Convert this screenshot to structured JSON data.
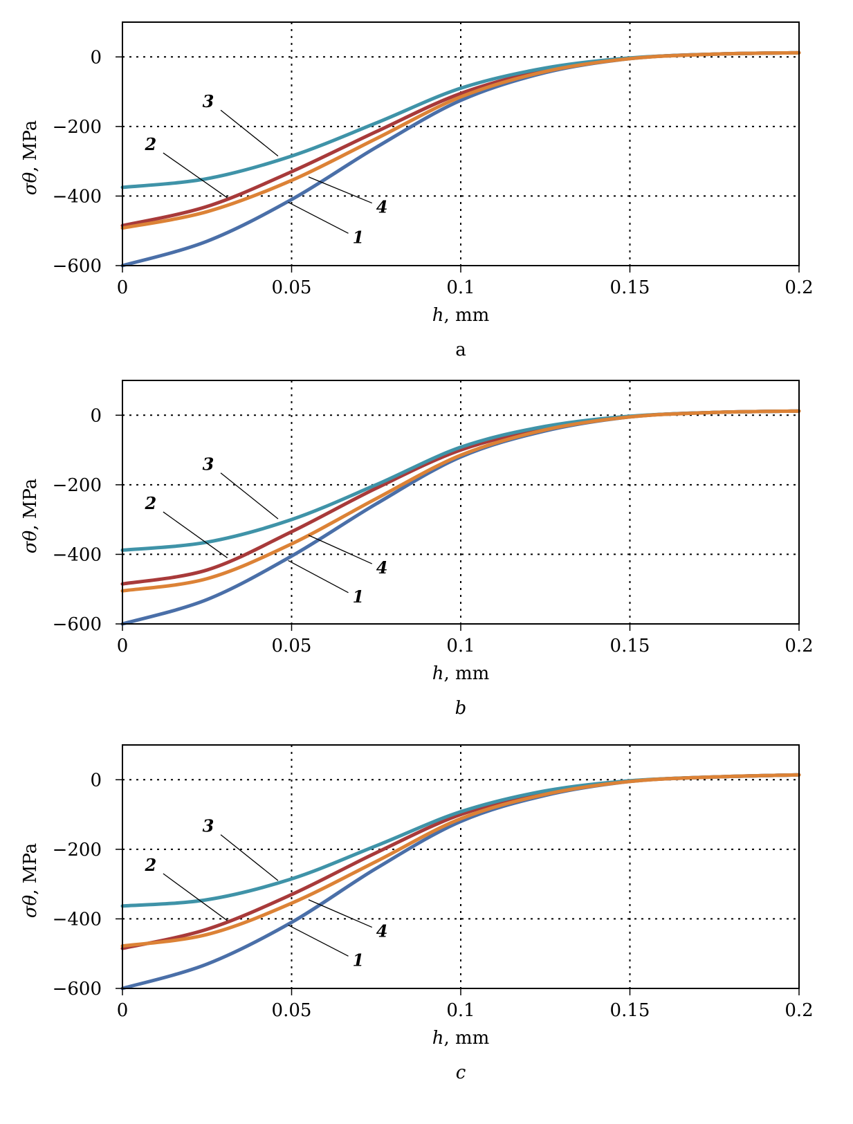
{
  "chart_data": [
    {
      "type": "line",
      "caption": "a",
      "xlabel_var": "h",
      "xlabel_unit": ", mm",
      "ylabel_var": "σθ",
      "ylabel_unit": ", MPa",
      "xlim": [
        0,
        0.2
      ],
      "ylim": [
        -600,
        100
      ],
      "xticks": [
        0,
        0.05,
        0.1,
        0.15,
        0.2
      ],
      "xtick_labels": [
        "0",
        "0.05",
        "0.1",
        "0.15",
        "0.2"
      ],
      "yticks": [
        0,
        -200,
        -400,
        -600
      ],
      "ytick_labels": [
        "0",
        "−200",
        "−400",
        "−600"
      ],
      "grid": true,
      "x": [
        0,
        0.025,
        0.05,
        0.075,
        0.1,
        0.125,
        0.15,
        0.175,
        0.2
      ],
      "series": [
        {
          "name": "1",
          "color": "#4a6fa8",
          "values": [
            -600,
            -530,
            -410,
            -260,
            -125,
            -45,
            -5,
            8,
            12
          ]
        },
        {
          "name": "2",
          "color": "#a83a3a",
          "values": [
            -485,
            -430,
            -330,
            -215,
            -105,
            -38,
            -4,
            8,
            12
          ]
        },
        {
          "name": "3",
          "color": "#3f93a8",
          "values": [
            -375,
            -350,
            -285,
            -190,
            -90,
            -32,
            -3,
            8,
            12
          ]
        },
        {
          "name": "4",
          "color": "#dc8236",
          "values": [
            -492,
            -445,
            -355,
            -235,
            -115,
            -42,
            -5,
            8,
            12
          ]
        }
      ],
      "annotations": [
        {
          "text": "3",
          "label_at": [
            0.027,
            -145
          ],
          "point_at": [
            0.046,
            -285
          ]
        },
        {
          "text": "2",
          "label_at": [
            0.01,
            -268
          ],
          "point_at": [
            0.031,
            -405
          ]
        },
        {
          "text": "4",
          "label_at": [
            0.075,
            -448
          ],
          "point_at": [
            0.055,
            -345
          ]
        },
        {
          "text": "1",
          "label_at": [
            0.068,
            -535
          ],
          "point_at": [
            0.049,
            -418
          ]
        }
      ]
    },
    {
      "type": "line",
      "caption": "b",
      "xlabel_var": "h",
      "xlabel_unit": ", mm",
      "ylabel_var": "σθ",
      "ylabel_unit": ", MPa",
      "xlim": [
        0,
        0.2
      ],
      "ylim": [
        -600,
        100
      ],
      "xticks": [
        0,
        0.05,
        0.1,
        0.15,
        0.2
      ],
      "xtick_labels": [
        "0",
        "0.05",
        "0.1",
        "0.15",
        "0.2"
      ],
      "yticks": [
        0,
        -200,
        -400,
        -600
      ],
      "ytick_labels": [
        "0",
        "−200",
        "−400",
        "−600"
      ],
      "grid": true,
      "x": [
        0,
        0.025,
        0.05,
        0.075,
        0.1,
        0.125,
        0.15,
        0.175,
        0.2
      ],
      "series": [
        {
          "name": "1",
          "color": "#4a6fa8",
          "values": [
            -600,
            -530,
            -405,
            -255,
            -120,
            -45,
            -5,
            8,
            12
          ]
        },
        {
          "name": "2",
          "color": "#a83a3a",
          "values": [
            -485,
            -445,
            -335,
            -210,
            -100,
            -38,
            -4,
            8,
            12
          ]
        },
        {
          "name": "3",
          "color": "#3f93a8",
          "values": [
            -388,
            -365,
            -300,
            -200,
            -92,
            -32,
            -3,
            8,
            12
          ]
        },
        {
          "name": "4",
          "color": "#dc8236",
          "values": [
            -505,
            -470,
            -370,
            -240,
            -115,
            -42,
            -5,
            8,
            12
          ]
        }
      ],
      "annotations": [
        {
          "text": "3",
          "label_at": [
            0.027,
            -158
          ],
          "point_at": [
            0.046,
            -298
          ]
        },
        {
          "text": "2",
          "label_at": [
            0.01,
            -270
          ],
          "point_at": [
            0.031,
            -410
          ]
        },
        {
          "text": "4",
          "label_at": [
            0.075,
            -455
          ],
          "point_at": [
            0.055,
            -345
          ]
        },
        {
          "text": "1",
          "label_at": [
            0.068,
            -538
          ],
          "point_at": [
            0.049,
            -418
          ]
        }
      ]
    },
    {
      "type": "line",
      "caption": "c",
      "xlabel_var": "h",
      "xlabel_unit": ", mm",
      "ylabel_var": "σθ",
      "ylabel_unit": ", MPa",
      "xlim": [
        0,
        0.2
      ],
      "ylim": [
        -600,
        100
      ],
      "xticks": [
        0,
        0.05,
        0.1,
        0.15,
        0.2
      ],
      "xtick_labels": [
        "0",
        "0.05",
        "0.1",
        "0.15",
        "0.2"
      ],
      "yticks": [
        0,
        -200,
        -400,
        -600
      ],
      "ytick_labels": [
        "0",
        "−200",
        "−400",
        "−600"
      ],
      "grid": true,
      "x": [
        0,
        0.025,
        0.05,
        0.075,
        0.1,
        0.125,
        0.15,
        0.175,
        0.2
      ],
      "series": [
        {
          "name": "1",
          "color": "#4a6fa8",
          "values": [
            -600,
            -530,
            -410,
            -255,
            -120,
            -45,
            -5,
            8,
            14
          ]
        },
        {
          "name": "2",
          "color": "#a83a3a",
          "values": [
            -485,
            -430,
            -330,
            -210,
            -100,
            -38,
            -4,
            8,
            14
          ]
        },
        {
          "name": "3",
          "color": "#3f93a8",
          "values": [
            -363,
            -345,
            -285,
            -190,
            -92,
            -32,
            -3,
            8,
            14
          ]
        },
        {
          "name": "4",
          "color": "#dc8236",
          "values": [
            -478,
            -445,
            -355,
            -235,
            -112,
            -42,
            -5,
            8,
            14
          ]
        }
      ],
      "annotations": [
        {
          "text": "3",
          "label_at": [
            0.027,
            -150
          ],
          "point_at": [
            0.046,
            -290
          ]
        },
        {
          "text": "2",
          "label_at": [
            0.01,
            -262
          ],
          "point_at": [
            0.031,
            -405
          ]
        },
        {
          "text": "4",
          "label_at": [
            0.075,
            -452
          ],
          "point_at": [
            0.055,
            -345
          ]
        },
        {
          "text": "1",
          "label_at": [
            0.068,
            -535
          ],
          "point_at": [
            0.049,
            -418
          ]
        }
      ]
    }
  ]
}
